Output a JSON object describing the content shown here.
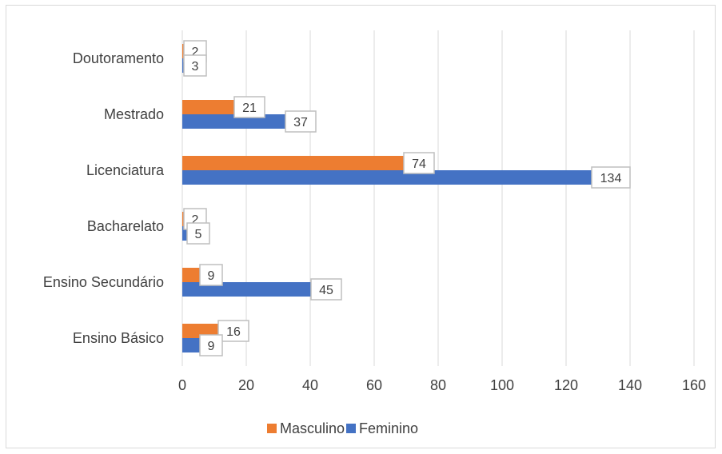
{
  "chart_data": {
    "type": "bar",
    "orientation": "horizontal",
    "categories": [
      "Doutoramento",
      "Mestrado",
      "Licenciatura",
      "Bacharelato",
      "Ensino Secundário",
      "Ensino Básico"
    ],
    "series": [
      {
        "name": "Masculino",
        "values": [
          2,
          21,
          74,
          2,
          9,
          16
        ],
        "color": "#ED7D31"
      },
      {
        "name": "Feminino",
        "values": [
          3,
          37,
          134,
          5,
          45,
          9
        ],
        "color": "#4472C4"
      }
    ],
    "xlim": [
      0,
      160
    ],
    "xticks": [
      0,
      20,
      40,
      60,
      80,
      100,
      120,
      140,
      160
    ],
    "grid": true,
    "legend": "bottom",
    "data_labels": true
  }
}
